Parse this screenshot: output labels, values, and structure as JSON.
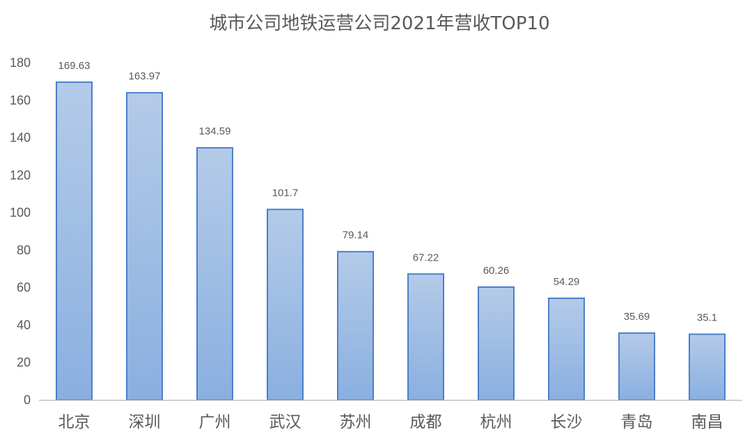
{
  "chart_data": {
    "type": "bar",
    "title": "城市公司地铁运营公司2021年营收TOP10",
    "xlabel": "",
    "ylabel": "",
    "categories": [
      "北京",
      "深圳",
      "广州",
      "武汉",
      "苏州",
      "成都",
      "杭州",
      "长沙",
      "青岛",
      "南昌"
    ],
    "values": [
      169.63,
      163.97,
      134.59,
      101.7,
      79.14,
      67.22,
      60.26,
      54.29,
      35.69,
      35.1
    ],
    "data_labels": [
      "169.63",
      "163.97",
      "134.59",
      "101.7",
      "79.14",
      "67.22",
      "60.26",
      "54.29",
      "35.69",
      "35.1"
    ],
    "ylim": [
      0,
      180
    ],
    "yticks": [
      0,
      20,
      40,
      60,
      80,
      100,
      120,
      140,
      160,
      180
    ],
    "grid": false,
    "legend": "none",
    "colors": {
      "bar_top": "#b4cbe8",
      "bar_bottom": "#8aafe0",
      "bar_border": "#4a7fc9",
      "axis": "#bfbfbf",
      "text": "#595959"
    }
  }
}
